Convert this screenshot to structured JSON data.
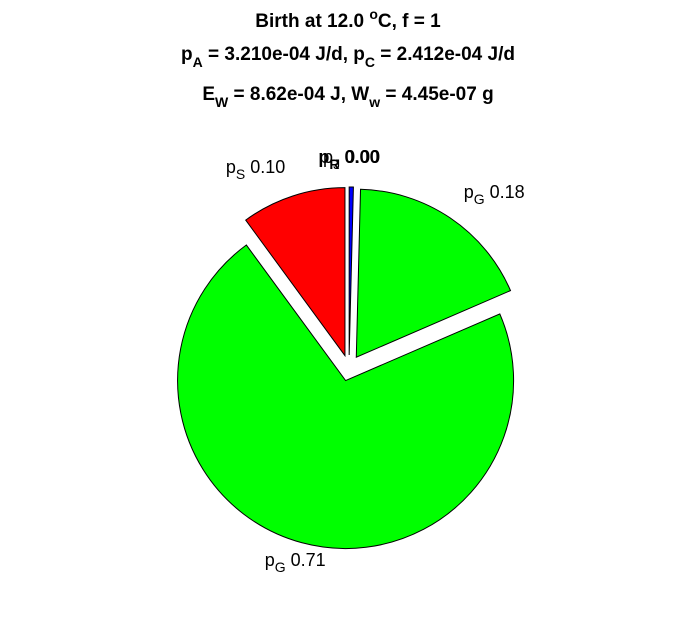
{
  "chart_data": {
    "type": "pie",
    "title": [
      [
        {
          "text": "Birth at 12.0 "
        },
        {
          "text": "o",
          "shift": "sup"
        },
        {
          "text": "C, f = 1"
        }
      ],
      [
        {
          "text": "p"
        },
        {
          "text": "A",
          "shift": "sub"
        },
        {
          "text": " = 3.210e-04 J/d, p"
        },
        {
          "text": "C",
          "shift": "sub"
        },
        {
          "text": " = 2.412e-04 J/d"
        }
      ],
      [
        {
          "text": "E"
        },
        {
          "text": "W",
          "shift": "sub"
        },
        {
          "text": " = 8.62e-04 J, W"
        },
        {
          "text": "w",
          "shift": "sub"
        },
        {
          "text": " = 4.45e-07 g"
        }
      ]
    ],
    "slices": [
      {
        "name": "p",
        "sub": "J",
        "value": 0.004,
        "value_label": "0.00",
        "color": "#0000ff",
        "explode": true
      },
      {
        "name": "p",
        "sub": "G",
        "value": 0.18,
        "value_label": "0.18",
        "color": "#00ff00",
        "explode": true
      },
      {
        "name": "p",
        "sub": "G",
        "value": 0.71,
        "value_label": "0.71",
        "color": "#00ff00",
        "explode": true
      },
      {
        "name": "p",
        "sub": "S",
        "value": 0.1,
        "value_label": "0.10",
        "color": "#ff0000",
        "explode": true
      },
      {
        "name": "p",
        "sub": "R",
        "value": 0,
        "value_label": "0.00",
        "color": "#ffff00",
        "explode": false
      }
    ]
  }
}
